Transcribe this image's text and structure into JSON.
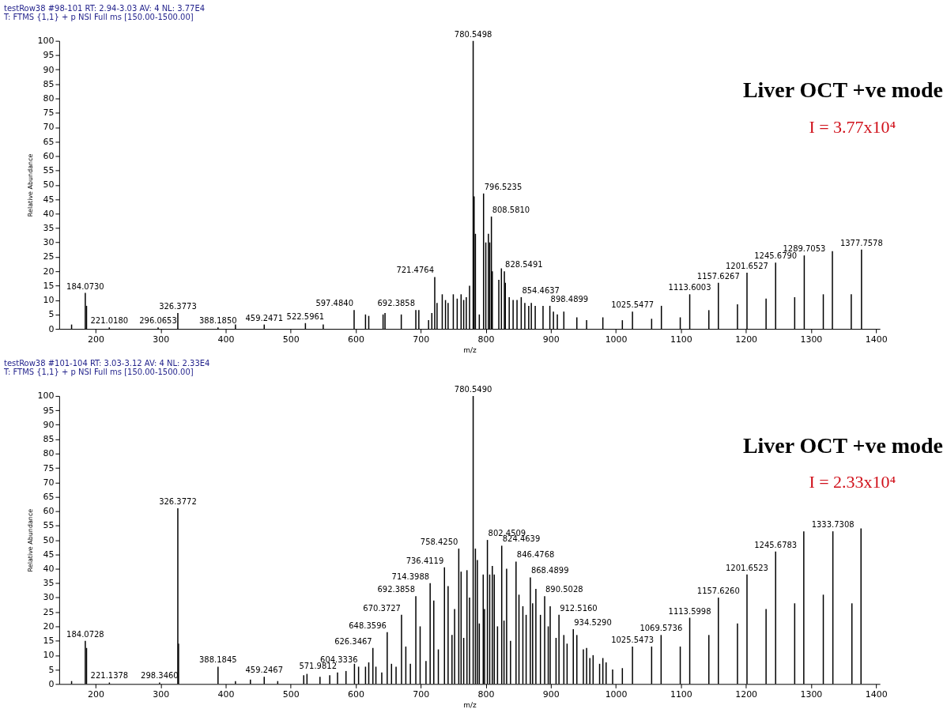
{
  "chart_data": [
    {
      "type": "bar",
      "title": "testRow38 #98-101   RT: 2.94-3.03   AV: 4   NL: 3.77E4",
      "subtitle": "T: FTMS {1,1}  + p NSI Full ms [150.00-1500.00]",
      "xlabel": "m/z",
      "ylabel": "Relative Abundance",
      "color": "#000000",
      "grid": false,
      "xlim": [
        150,
        1400
      ],
      "ylim": [
        0,
        100
      ],
      "xticks": [
        200,
        300,
        400,
        500,
        600,
        700,
        800,
        900,
        1000,
        1100,
        1200,
        1300,
        1400
      ],
      "yticks": [
        0,
        5,
        10,
        15,
        20,
        25,
        30,
        35,
        40,
        45,
        50,
        55,
        60,
        65,
        70,
        75,
        80,
        85,
        90,
        95,
        100
      ],
      "x": [
        163,
        184.073,
        186,
        221.018,
        296.0653,
        326.3773,
        388.185,
        415,
        459.2471,
        522.5961,
        550,
        597.484,
        615,
        620,
        642,
        645,
        670,
        692.3858,
        697,
        712,
        717,
        721.4764,
        725,
        733,
        738,
        742,
        750,
        756,
        762,
        766,
        770,
        775,
        780.5498,
        782,
        784,
        790,
        796.5235,
        800,
        804,
        806,
        808.581,
        810,
        820,
        824,
        828.5491,
        830,
        836,
        842,
        848,
        854.4637,
        860,
        866,
        870,
        876,
        888,
        898.4899,
        904,
        910,
        920,
        940,
        955,
        980,
        1010,
        1025.5477,
        1055,
        1070,
        1099,
        1113.6003,
        1143,
        1157.6267,
        1187,
        1201.6527,
        1231,
        1245.679,
        1275,
        1289.7053,
        1319,
        1333,
        1362,
        1377.7578
      ],
      "values": [
        1.5,
        12.5,
        8,
        0.5,
        0.5,
        5.5,
        0.5,
        1.5,
        1.5,
        2,
        1.5,
        6.5,
        5,
        4.5,
        5,
        5.5,
        5,
        6.5,
        6.5,
        3,
        5.5,
        18,
        9,
        12,
        10,
        9,
        12,
        10.5,
        12,
        10,
        11,
        15,
        100,
        46,
        33,
        5,
        47,
        30,
        33,
        30,
        39,
        20,
        17,
        21,
        20,
        16,
        11,
        10,
        10,
        11,
        9,
        8,
        9,
        8,
        8,
        8,
        6,
        5,
        6,
        4,
        3,
        4,
        3,
        6,
        3.5,
        8,
        4,
        12,
        6.5,
        16,
        8.5,
        19.5,
        10.5,
        23,
        11,
        25.5,
        12,
        27,
        12,
        27.5
      ],
      "annotations": [
        "Liver OCT   +ve mode",
        "I = 3.77x10⁴",
        {
          "text": "184.0730",
          "x": 184.073,
          "y": 12.5
        },
        {
          "text": "221.0180",
          "x": 221.018,
          "y": 0.5
        },
        {
          "text": "296.0653",
          "x": 296.0653,
          "y": 0.5
        },
        {
          "text": "326.3773",
          "x": 326.3773,
          "y": 5.5
        },
        {
          "text": "388.1850",
          "x": 388.185,
          "y": 0.5
        },
        {
          "text": "459.2471",
          "x": 459.2471,
          "y": 1.5
        },
        {
          "text": "522.5961",
          "x": 522.5961,
          "y": 2
        },
        {
          "text": "597.4840",
          "x": 597.484,
          "y": 6.5
        },
        {
          "text": "692.3858",
          "x": 692.3858,
          "y": 6.5
        },
        {
          "text": "721.4764",
          "x": 721.4764,
          "y": 18
        },
        {
          "text": "780.5498",
          "x": 780.5498,
          "y": 100
        },
        {
          "text": "796.5235",
          "x": 796.5235,
          "y": 47
        },
        {
          "text": "808.5810",
          "x": 808.581,
          "y": 39
        },
        {
          "text": "828.5491",
          "x": 828.5491,
          "y": 20
        },
        {
          "text": "854.4637",
          "x": 854.4637,
          "y": 11
        },
        {
          "text": "898.4899",
          "x": 898.4899,
          "y": 8
        },
        {
          "text": "1025.5477",
          "x": 1025.5477,
          "y": 6
        },
        {
          "text": "1113.6003",
          "x": 1113.6003,
          "y": 12
        },
        {
          "text": "1157.6267",
          "x": 1157.6267,
          "y": 16
        },
        {
          "text": "1201.6527",
          "x": 1201.6527,
          "y": 19.5
        },
        {
          "text": "1245.6790",
          "x": 1245.679,
          "y": 23
        },
        {
          "text": "1289.7053",
          "x": 1289.7053,
          "y": 25.5
        },
        {
          "text": "1377.7578",
          "x": 1377.7578,
          "y": 27.5
        }
      ]
    },
    {
      "type": "bar",
      "title": "testRow38 #101-104   RT: 3.03-3.12   AV: 4   NL: 2.33E4",
      "subtitle": "T: FTMS {1,1}  + p NSI Full ms [150.00-1500.00]",
      "xlabel": "m/z",
      "ylabel": "Relative Abundance",
      "color": "#000000",
      "grid": false,
      "xlim": [
        150,
        1400
      ],
      "ylim": [
        0,
        100
      ],
      "xticks": [
        200,
        300,
        400,
        500,
        600,
        700,
        800,
        900,
        1000,
        1100,
        1200,
        1300,
        1400
      ],
      "yticks": [
        0,
        5,
        10,
        15,
        20,
        25,
        30,
        35,
        40,
        45,
        50,
        55,
        60,
        65,
        70,
        75,
        80,
        85,
        90,
        95,
        100
      ],
      "x": [
        163,
        184.0728,
        186,
        221.1378,
        298.346,
        326.3772,
        327.5,
        388.1845,
        415,
        438,
        459.2467,
        480,
        520,
        525,
        545,
        560,
        571.9812,
        585,
        598,
        604.3336,
        615,
        620,
        626.3467,
        631,
        640,
        648.3596,
        655,
        662,
        670.3727,
        677,
        684,
        692.3858,
        699,
        708,
        714.3988,
        720,
        727,
        736.4119,
        742,
        748,
        752,
        758.425,
        762,
        766,
        771,
        775,
        780.549,
        784,
        787,
        790,
        796,
        798,
        802.4509,
        806,
        810,
        813,
        818,
        824.4639,
        828,
        832,
        838,
        846.4768,
        851,
        857,
        862,
        868.4899,
        872,
        877,
        884,
        890.5028,
        896,
        899,
        908,
        912.516,
        920,
        925,
        934.529,
        940,
        950,
        955,
        960,
        965,
        975,
        980,
        985,
        995,
        1010,
        1025.5473,
        1055,
        1069.5736,
        1099,
        1113.5998,
        1143,
        1157.626,
        1187,
        1201.6523,
        1231,
        1245.6783,
        1275,
        1289,
        1319,
        1333.7308,
        1363,
        1377
      ],
      "values": [
        1,
        15,
        12.5,
        0.5,
        0.5,
        61,
        14,
        6,
        1,
        1.5,
        2.5,
        1,
        3,
        3.5,
        2.5,
        3,
        4,
        4.5,
        7,
        6,
        6,
        7.5,
        12.5,
        6,
        4,
        18,
        7,
        6,
        24,
        13,
        7,
        30.5,
        20,
        8,
        35,
        29,
        12,
        40.5,
        34,
        17,
        26,
        47,
        39,
        16,
        39.5,
        30,
        100,
        47,
        43,
        21,
        38,
        26,
        50,
        38,
        41,
        38,
        20,
        48,
        22,
        40,
        15,
        42.5,
        31,
        27,
        24,
        37,
        28,
        33,
        24,
        30.5,
        20,
        27,
        16,
        24,
        17,
        14,
        19,
        17,
        12,
        12.5,
        9,
        10,
        7,
        9,
        7.5,
        5,
        5.5,
        13,
        13,
        17,
        13,
        23,
        17,
        30,
        21,
        38,
        26,
        46,
        28,
        53,
        31,
        53,
        28,
        54
      ],
      "annotations": [
        "Liver OCT   +ve mode",
        "I = 2.33x10⁴",
        {
          "text": "184.0728",
          "x": 184.0728,
          "y": 15
        },
        {
          "text": "221.1378",
          "x": 221.1378,
          "y": 0.5
        },
        {
          "text": "298.3460",
          "x": 298.346,
          "y": 0.5
        },
        {
          "text": "326.3772",
          "x": 326.3772,
          "y": 61
        },
        {
          "text": "388.1845",
          "x": 388.1845,
          "y": 6
        },
        {
          "text": "459.2467",
          "x": 459.2467,
          "y": 2.5
        },
        {
          "text": "571.9812",
          "x": 571.9812,
          "y": 4
        },
        {
          "text": "604.3336",
          "x": 604.3336,
          "y": 6
        },
        {
          "text": "626.3467",
          "x": 626.3467,
          "y": 12.5
        },
        {
          "text": "648.3596",
          "x": 648.3596,
          "y": 18
        },
        {
          "text": "670.3727",
          "x": 670.3727,
          "y": 24
        },
        {
          "text": "692.3858",
          "x": 692.3858,
          "y": 30.5
        },
        {
          "text": "714.3988",
          "x": 714.3988,
          "y": 35
        },
        {
          "text": "736.4119",
          "x": 736.4119,
          "y": 40.5
        },
        {
          "text": "758.4250",
          "x": 758.425,
          "y": 47
        },
        {
          "text": "780.5490",
          "x": 780.549,
          "y": 100
        },
        {
          "text": "802.4509",
          "x": 802.4509,
          "y": 50
        },
        {
          "text": "824.4639",
          "x": 824.4639,
          "y": 48
        },
        {
          "text": "846.4768",
          "x": 846.4768,
          "y": 42.5
        },
        {
          "text": "868.4899",
          "x": 868.4899,
          "y": 37
        },
        {
          "text": "890.5028",
          "x": 890.5028,
          "y": 30.5
        },
        {
          "text": "912.5160",
          "x": 912.516,
          "y": 24
        },
        {
          "text": "934.5290",
          "x": 934.529,
          "y": 19
        },
        {
          "text": "1025.5473",
          "x": 1025.5473,
          "y": 13
        },
        {
          "text": "1069.5736",
          "x": 1069.5736,
          "y": 17
        },
        {
          "text": "1113.5998",
          "x": 1113.5998,
          "y": 23
        },
        {
          "text": "1157.6260",
          "x": 1157.626,
          "y": 30
        },
        {
          "text": "1201.6523",
          "x": 1201.6523,
          "y": 38
        },
        {
          "text": "1245.6783",
          "x": 1245.6783,
          "y": 46
        },
        {
          "text": "1333.7308",
          "x": 1333.7308,
          "y": 53
        }
      ]
    }
  ]
}
